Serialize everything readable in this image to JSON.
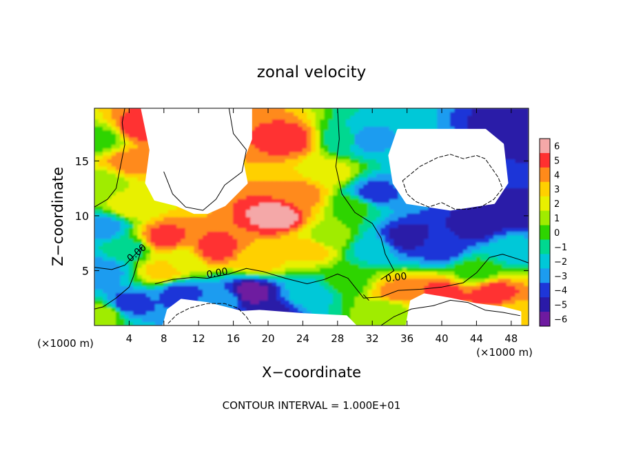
{
  "chart_data": {
    "type": "heatmap",
    "title": "zonal velocity",
    "xlabel": "X−coordinate",
    "ylabel": "Z−coordinate",
    "x_unit_left": "(×1000 m)",
    "x_unit_right": "(×1000 m)",
    "footer": "CONTOUR INTERVAL = 1.000E+01",
    "xlim": [
      0,
      50
    ],
    "ylim": [
      0,
      19.8
    ],
    "x_ticks": [
      4,
      8,
      12,
      16,
      20,
      24,
      28,
      32,
      36,
      40,
      44,
      48
    ],
    "x_tick_labels": [
      "4",
      "8",
      "12",
      "16",
      "20",
      "24",
      "28",
      "32",
      "36",
      "40",
      "44",
      "48"
    ],
    "y_ticks": [
      5,
      10,
      15
    ],
    "y_tick_labels": [
      "5",
      "10",
      "15"
    ],
    "colorbar": {
      "values": [
        6,
        5,
        4,
        3,
        2,
        1,
        0,
        -1,
        -2,
        -3,
        -4,
        -5,
        -6
      ],
      "labels": [
        "6",
        "5",
        "4",
        "3",
        "2",
        "1",
        "0",
        "−1",
        "−2",
        "−3",
        "−4",
        "−5",
        "−6"
      ],
      "colors": [
        "#f4a8a8",
        "#ff3030",
        "#ff8a1a",
        "#ffd000",
        "#e8f000",
        "#a0ec00",
        "#2ed400",
        "#00d890",
        "#00c8d8",
        "#1c9cf0",
        "#1e36d8",
        "#2a1aa8",
        "#6e1aa0"
      ]
    },
    "contour_labels": [
      {
        "text": "0.00",
        "x": 5.1,
        "y": 6.4,
        "angle": -40
      },
      {
        "text": "0.00",
        "x": 14.2,
        "y": 4.5,
        "angle": -10
      },
      {
        "text": "0.00",
        "x": 34.8,
        "y": 4.1,
        "angle": -8
      }
    ],
    "field_anchors": [
      {
        "x": 1,
        "y": 1,
        "v": 1
      },
      {
        "x": 1,
        "y": 5,
        "v": -3
      },
      {
        "x": 1,
        "y": 9,
        "v": -3
      },
      {
        "x": 1,
        "y": 13,
        "v": 1
      },
      {
        "x": 1,
        "y": 17,
        "v": 0
      },
      {
        "x": 4,
        "y": 2,
        "v": -4
      },
      {
        "x": 4,
        "y": 7,
        "v": -1
      },
      {
        "x": 4,
        "y": 11,
        "v": 2
      },
      {
        "x": 4,
        "y": 15,
        "v": 4
      },
      {
        "x": 5,
        "y": 18,
        "v": 5
      },
      {
        "x": 8,
        "y": 5,
        "v": 3
      },
      {
        "x": 8,
        "y": 8,
        "v": 5
      },
      {
        "x": 10,
        "y": 6,
        "v": 2
      },
      {
        "x": 10,
        "y": 3,
        "v": -4
      },
      {
        "x": 14,
        "y": 7,
        "v": 5
      },
      {
        "x": 15,
        "y": 2.5,
        "v": -3
      },
      {
        "x": 18,
        "y": 3,
        "v": -6
      },
      {
        "x": 20,
        "y": 1,
        "v": -5
      },
      {
        "x": 19,
        "y": 6,
        "v": 3
      },
      {
        "x": 21,
        "y": 10,
        "v": 6
      },
      {
        "x": 22.5,
        "y": 17,
        "v": 5
      },
      {
        "x": 24,
        "y": 12,
        "v": 4
      },
      {
        "x": 25,
        "y": 7,
        "v": 3
      },
      {
        "x": 25,
        "y": 3,
        "v": -2
      },
      {
        "x": 27,
        "y": 14,
        "v": 2
      },
      {
        "x": 27,
        "y": 8,
        "v": 1
      },
      {
        "x": 29,
        "y": 17,
        "v": -1
      },
      {
        "x": 30,
        "y": 11,
        "v": 0
      },
      {
        "x": 29,
        "y": 4,
        "v": 0
      },
      {
        "x": 31,
        "y": 17,
        "v": -3
      },
      {
        "x": 32,
        "y": 12,
        "v": -4
      },
      {
        "x": 32,
        "y": 7,
        "v": -2
      },
      {
        "x": 34,
        "y": 1.5,
        "v": 1
      },
      {
        "x": 35,
        "y": 3,
        "v": 4
      },
      {
        "x": 36,
        "y": 8,
        "v": -5
      },
      {
        "x": 40,
        "y": 7,
        "v": -4
      },
      {
        "x": 40,
        "y": 3,
        "v": 5
      },
      {
        "x": 44,
        "y": 9,
        "v": -5
      },
      {
        "x": 44,
        "y": 5,
        "v": 0
      },
      {
        "x": 46,
        "y": 3,
        "v": 5
      },
      {
        "x": 48,
        "y": 7,
        "v": -2
      },
      {
        "x": 48,
        "y": 1,
        "v": 3
      },
      {
        "x": 49,
        "y": 18,
        "v": -5
      },
      {
        "x": 48,
        "y": 10,
        "v": -5
      }
    ],
    "blank_regions": [
      [
        [
          5.5,
          19.8
        ],
        [
          18,
          19.8
        ],
        [
          18,
          17
        ],
        [
          17,
          15
        ],
        [
          17.5,
          13
        ],
        [
          15,
          11
        ],
        [
          13,
          10.3
        ],
        [
          11.5,
          10.3
        ],
        [
          9.5,
          11
        ],
        [
          7,
          11.5
        ],
        [
          6,
          13
        ],
        [
          6.5,
          16
        ]
      ],
      [
        [
          35,
          17.8
        ],
        [
          45,
          17.8
        ],
        [
          47,
          16.5
        ],
        [
          47.5,
          13
        ],
        [
          46,
          11.2
        ],
        [
          41,
          10.6
        ],
        [
          36,
          11.2
        ],
        [
          34.5,
          13
        ],
        [
          34,
          15.5
        ]
      ],
      [
        [
          8,
          0
        ],
        [
          30,
          0
        ],
        [
          29,
          0.8
        ],
        [
          24,
          1
        ],
        [
          19,
          1.3
        ],
        [
          17,
          1.2
        ],
        [
          13,
          2
        ],
        [
          10,
          2.3
        ],
        [
          8.5,
          1.4
        ]
      ],
      [
        [
          36,
          0
        ],
        [
          49,
          0
        ],
        [
          49,
          1.2
        ],
        [
          47,
          1.6
        ],
        [
          44,
          1.9
        ],
        [
          41,
          2.4
        ],
        [
          38,
          2.8
        ],
        [
          36.5,
          2.2
        ]
      ]
    ],
    "contours": [
      {
        "style": "solid",
        "points": [
          [
            0,
            10.8
          ],
          [
            1.5,
            11.5
          ],
          [
            2.5,
            12.5
          ],
          [
            3,
            14.5
          ],
          [
            3.5,
            16.5
          ],
          [
            3.2,
            18.5
          ],
          [
            3.5,
            19.8
          ]
        ]
      },
      {
        "style": "solid",
        "points": [
          [
            0,
            5.3
          ],
          [
            2,
            5.1
          ],
          [
            3.5,
            5.5
          ],
          [
            4.5,
            6.3
          ],
          [
            5.5,
            7.2
          ],
          [
            4.5,
            4.5
          ],
          [
            4,
            3.5
          ],
          [
            2.5,
            2.5
          ],
          [
            1,
            1.7
          ],
          [
            0,
            1.5
          ]
        ]
      },
      {
        "style": "solid",
        "points": [
          [
            7,
            3.8
          ],
          [
            9,
            4.2
          ],
          [
            11.5,
            4.4
          ],
          [
            13,
            4.3
          ],
          [
            15.5,
            4.7
          ],
          [
            17.5,
            5.2
          ],
          [
            19.5,
            4.9
          ],
          [
            22,
            4.3
          ],
          [
            24.5,
            3.8
          ],
          [
            26.5,
            4.2
          ],
          [
            28,
            4.7
          ],
          [
            29.2,
            4.3
          ],
          [
            30,
            3.5
          ],
          [
            31,
            2.5
          ],
          [
            33,
            2.6
          ],
          [
            35,
            3.2
          ],
          [
            37.5,
            3.3
          ],
          [
            40,
            3.5
          ],
          [
            42.5,
            3.9
          ],
          [
            44,
            4.8
          ],
          [
            45.5,
            6.2
          ],
          [
            47,
            6.5
          ],
          [
            49,
            6
          ],
          [
            50,
            5.7
          ]
        ]
      },
      {
        "style": "solid",
        "points": [
          [
            28,
            19.8
          ],
          [
            28.2,
            17
          ],
          [
            27.8,
            14.5
          ],
          [
            28.5,
            12
          ],
          [
            30,
            10.3
          ],
          [
            32,
            9.3
          ],
          [
            33,
            8
          ],
          [
            33.5,
            6.5
          ],
          [
            34.5,
            5
          ],
          [
            33,
            4.2
          ]
        ]
      },
      {
        "style": "solid",
        "points": [
          [
            15.5,
            19.8
          ],
          [
            16,
            17.5
          ],
          [
            17.5,
            16
          ],
          [
            17,
            14
          ],
          [
            15,
            12.8
          ],
          [
            14,
            11.5
          ],
          [
            12.5,
            10.5
          ],
          [
            10.5,
            10.8
          ],
          [
            9,
            12
          ],
          [
            8,
            14
          ]
        ]
      },
      {
        "style": "solid",
        "points": [
          [
            33,
            0
          ],
          [
            34.5,
            0.8
          ],
          [
            36.5,
            1.5
          ],
          [
            39,
            1.8
          ],
          [
            41,
            2.3
          ],
          [
            43,
            2.1
          ],
          [
            45,
            1.4
          ],
          [
            47,
            1.2
          ],
          [
            49,
            0.9
          ]
        ]
      },
      {
        "style": "solid",
        "points": [
          [
            31,
            2.8
          ],
          [
            31.6,
            2.3
          ]
        ]
      },
      {
        "style": "dashed",
        "points": [
          [
            35.5,
            13.2
          ],
          [
            37.5,
            14.5
          ],
          [
            39.5,
            15.3
          ],
          [
            41,
            15.6
          ],
          [
            42.5,
            15.2
          ],
          [
            44,
            15.5
          ],
          [
            45,
            15.2
          ],
          [
            45.8,
            14.3
          ],
          [
            46.5,
            13.5
          ],
          [
            47,
            12.5
          ],
          [
            46,
            11.5
          ],
          [
            44.5,
            10.8
          ],
          [
            43,
            10.6
          ],
          [
            41.5,
            10.6
          ],
          [
            40,
            11.2
          ],
          [
            38.5,
            10.8
          ],
          [
            37,
            11.3
          ],
          [
            36,
            12
          ],
          [
            35.5,
            13.2
          ]
        ]
      },
      {
        "style": "dashed",
        "points": [
          [
            8.5,
            0.2
          ],
          [
            9.5,
            1
          ],
          [
            11,
            1.6
          ],
          [
            13,
            2
          ],
          [
            15,
            2
          ],
          [
            16.5,
            1.6
          ],
          [
            17.5,
            0.8
          ],
          [
            18,
            0.2
          ]
        ]
      }
    ]
  }
}
